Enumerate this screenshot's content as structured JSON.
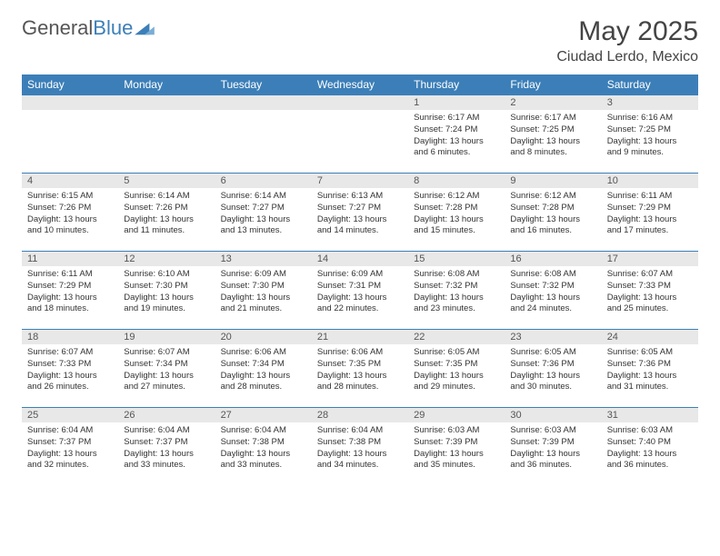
{
  "header": {
    "logo_general": "General",
    "logo_blue": "Blue",
    "month_title": "May 2025",
    "location": "Ciudad Lerdo, Mexico"
  },
  "colors": {
    "header_bg": "#3c7fb8",
    "header_text": "#ffffff",
    "daynum_bg": "#e8e8e8",
    "border": "#3c7fb8",
    "text": "#333333"
  },
  "calendar": {
    "day_headers": [
      "Sunday",
      "Monday",
      "Tuesday",
      "Wednesday",
      "Thursday",
      "Friday",
      "Saturday"
    ],
    "weeks": [
      [
        {
          "num": "",
          "sunrise": "",
          "sunset": "",
          "daylight1": "",
          "daylight2": ""
        },
        {
          "num": "",
          "sunrise": "",
          "sunset": "",
          "daylight1": "",
          "daylight2": ""
        },
        {
          "num": "",
          "sunrise": "",
          "sunset": "",
          "daylight1": "",
          "daylight2": ""
        },
        {
          "num": "",
          "sunrise": "",
          "sunset": "",
          "daylight1": "",
          "daylight2": ""
        },
        {
          "num": "1",
          "sunrise": "Sunrise: 6:17 AM",
          "sunset": "Sunset: 7:24 PM",
          "daylight1": "Daylight: 13 hours",
          "daylight2": "and 6 minutes."
        },
        {
          "num": "2",
          "sunrise": "Sunrise: 6:17 AM",
          "sunset": "Sunset: 7:25 PM",
          "daylight1": "Daylight: 13 hours",
          "daylight2": "and 8 minutes."
        },
        {
          "num": "3",
          "sunrise": "Sunrise: 6:16 AM",
          "sunset": "Sunset: 7:25 PM",
          "daylight1": "Daylight: 13 hours",
          "daylight2": "and 9 minutes."
        }
      ],
      [
        {
          "num": "4",
          "sunrise": "Sunrise: 6:15 AM",
          "sunset": "Sunset: 7:26 PM",
          "daylight1": "Daylight: 13 hours",
          "daylight2": "and 10 minutes."
        },
        {
          "num": "5",
          "sunrise": "Sunrise: 6:14 AM",
          "sunset": "Sunset: 7:26 PM",
          "daylight1": "Daylight: 13 hours",
          "daylight2": "and 11 minutes."
        },
        {
          "num": "6",
          "sunrise": "Sunrise: 6:14 AM",
          "sunset": "Sunset: 7:27 PM",
          "daylight1": "Daylight: 13 hours",
          "daylight2": "and 13 minutes."
        },
        {
          "num": "7",
          "sunrise": "Sunrise: 6:13 AM",
          "sunset": "Sunset: 7:27 PM",
          "daylight1": "Daylight: 13 hours",
          "daylight2": "and 14 minutes."
        },
        {
          "num": "8",
          "sunrise": "Sunrise: 6:12 AM",
          "sunset": "Sunset: 7:28 PM",
          "daylight1": "Daylight: 13 hours",
          "daylight2": "and 15 minutes."
        },
        {
          "num": "9",
          "sunrise": "Sunrise: 6:12 AM",
          "sunset": "Sunset: 7:28 PM",
          "daylight1": "Daylight: 13 hours",
          "daylight2": "and 16 minutes."
        },
        {
          "num": "10",
          "sunrise": "Sunrise: 6:11 AM",
          "sunset": "Sunset: 7:29 PM",
          "daylight1": "Daylight: 13 hours",
          "daylight2": "and 17 minutes."
        }
      ],
      [
        {
          "num": "11",
          "sunrise": "Sunrise: 6:11 AM",
          "sunset": "Sunset: 7:29 PM",
          "daylight1": "Daylight: 13 hours",
          "daylight2": "and 18 minutes."
        },
        {
          "num": "12",
          "sunrise": "Sunrise: 6:10 AM",
          "sunset": "Sunset: 7:30 PM",
          "daylight1": "Daylight: 13 hours",
          "daylight2": "and 19 minutes."
        },
        {
          "num": "13",
          "sunrise": "Sunrise: 6:09 AM",
          "sunset": "Sunset: 7:30 PM",
          "daylight1": "Daylight: 13 hours",
          "daylight2": "and 21 minutes."
        },
        {
          "num": "14",
          "sunrise": "Sunrise: 6:09 AM",
          "sunset": "Sunset: 7:31 PM",
          "daylight1": "Daylight: 13 hours",
          "daylight2": "and 22 minutes."
        },
        {
          "num": "15",
          "sunrise": "Sunrise: 6:08 AM",
          "sunset": "Sunset: 7:32 PM",
          "daylight1": "Daylight: 13 hours",
          "daylight2": "and 23 minutes."
        },
        {
          "num": "16",
          "sunrise": "Sunrise: 6:08 AM",
          "sunset": "Sunset: 7:32 PM",
          "daylight1": "Daylight: 13 hours",
          "daylight2": "and 24 minutes."
        },
        {
          "num": "17",
          "sunrise": "Sunrise: 6:07 AM",
          "sunset": "Sunset: 7:33 PM",
          "daylight1": "Daylight: 13 hours",
          "daylight2": "and 25 minutes."
        }
      ],
      [
        {
          "num": "18",
          "sunrise": "Sunrise: 6:07 AM",
          "sunset": "Sunset: 7:33 PM",
          "daylight1": "Daylight: 13 hours",
          "daylight2": "and 26 minutes."
        },
        {
          "num": "19",
          "sunrise": "Sunrise: 6:07 AM",
          "sunset": "Sunset: 7:34 PM",
          "daylight1": "Daylight: 13 hours",
          "daylight2": "and 27 minutes."
        },
        {
          "num": "20",
          "sunrise": "Sunrise: 6:06 AM",
          "sunset": "Sunset: 7:34 PM",
          "daylight1": "Daylight: 13 hours",
          "daylight2": "and 28 minutes."
        },
        {
          "num": "21",
          "sunrise": "Sunrise: 6:06 AM",
          "sunset": "Sunset: 7:35 PM",
          "daylight1": "Daylight: 13 hours",
          "daylight2": "and 28 minutes."
        },
        {
          "num": "22",
          "sunrise": "Sunrise: 6:05 AM",
          "sunset": "Sunset: 7:35 PM",
          "daylight1": "Daylight: 13 hours",
          "daylight2": "and 29 minutes."
        },
        {
          "num": "23",
          "sunrise": "Sunrise: 6:05 AM",
          "sunset": "Sunset: 7:36 PM",
          "daylight1": "Daylight: 13 hours",
          "daylight2": "and 30 minutes."
        },
        {
          "num": "24",
          "sunrise": "Sunrise: 6:05 AM",
          "sunset": "Sunset: 7:36 PM",
          "daylight1": "Daylight: 13 hours",
          "daylight2": "and 31 minutes."
        }
      ],
      [
        {
          "num": "25",
          "sunrise": "Sunrise: 6:04 AM",
          "sunset": "Sunset: 7:37 PM",
          "daylight1": "Daylight: 13 hours",
          "daylight2": "and 32 minutes."
        },
        {
          "num": "26",
          "sunrise": "Sunrise: 6:04 AM",
          "sunset": "Sunset: 7:37 PM",
          "daylight1": "Daylight: 13 hours",
          "daylight2": "and 33 minutes."
        },
        {
          "num": "27",
          "sunrise": "Sunrise: 6:04 AM",
          "sunset": "Sunset: 7:38 PM",
          "daylight1": "Daylight: 13 hours",
          "daylight2": "and 33 minutes."
        },
        {
          "num": "28",
          "sunrise": "Sunrise: 6:04 AM",
          "sunset": "Sunset: 7:38 PM",
          "daylight1": "Daylight: 13 hours",
          "daylight2": "and 34 minutes."
        },
        {
          "num": "29",
          "sunrise": "Sunrise: 6:03 AM",
          "sunset": "Sunset: 7:39 PM",
          "daylight1": "Daylight: 13 hours",
          "daylight2": "and 35 minutes."
        },
        {
          "num": "30",
          "sunrise": "Sunrise: 6:03 AM",
          "sunset": "Sunset: 7:39 PM",
          "daylight1": "Daylight: 13 hours",
          "daylight2": "and 36 minutes."
        },
        {
          "num": "31",
          "sunrise": "Sunrise: 6:03 AM",
          "sunset": "Sunset: 7:40 PM",
          "daylight1": "Daylight: 13 hours",
          "daylight2": "and 36 minutes."
        }
      ]
    ]
  }
}
